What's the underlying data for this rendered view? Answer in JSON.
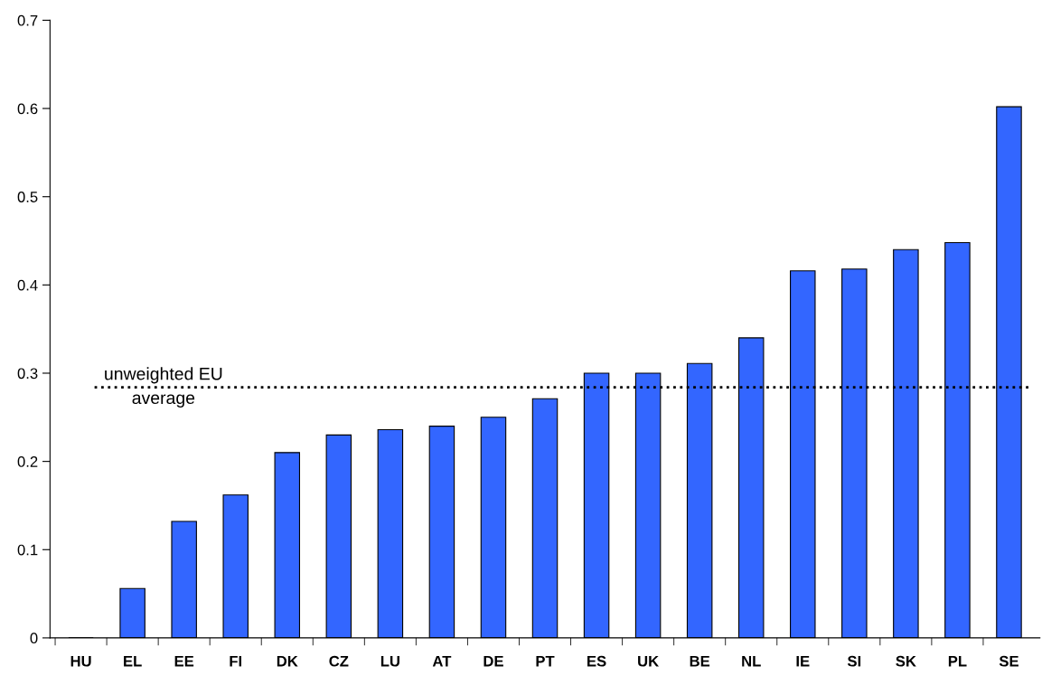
{
  "chart_data": {
    "type": "bar",
    "categories": [
      "HU",
      "EL",
      "EE",
      "FI",
      "DK",
      "CZ",
      "LU",
      "AT",
      "DE",
      "PT",
      "ES",
      "UK",
      "BE",
      "NL",
      "IE",
      "SI",
      "SK",
      "PL",
      "SE"
    ],
    "values": [
      0,
      0.056,
      0.132,
      0.162,
      0.21,
      0.23,
      0.236,
      0.24,
      0.25,
      0.271,
      0.3,
      0.3,
      0.311,
      0.34,
      0.416,
      0.418,
      0.44,
      0.448,
      0.602
    ],
    "color": "#3366ff",
    "ylim": [
      0,
      0.7
    ],
    "yticks": [
      0,
      0.1,
      0.2,
      0.3,
      0.4,
      0.5,
      0.6,
      0.7
    ],
    "ref_lines": [
      {
        "axis": "y",
        "value": 0.284,
        "label": "unweighted EU\naverage",
        "color": "#000000",
        "line_style": "dotted"
      }
    ],
    "grid": false,
    "legend": false
  }
}
